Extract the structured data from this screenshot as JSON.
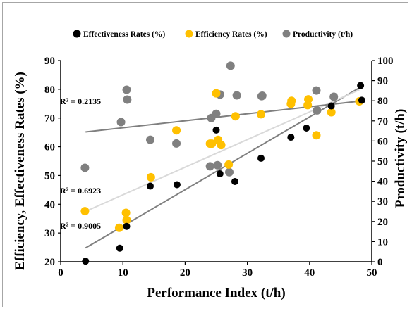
{
  "chart_data": {
    "type": "scatter",
    "xlabel": "Performance Index (t/h)",
    "ylabel_left": "Efficiency, Effectiveness Rates (%)",
    "ylabel_right": "Productivity (t/h)",
    "xlim": [
      0,
      50
    ],
    "ylim_left": [
      20,
      90
    ],
    "ylim_right": [
      0,
      100
    ],
    "x_ticks": [
      "0",
      "10",
      "20",
      "30",
      "40",
      "50"
    ],
    "y_ticks_left": [
      "20",
      "30",
      "40",
      "50",
      "60",
      "70",
      "80",
      "90"
    ],
    "y_ticks_right": [
      "0",
      "10",
      "20",
      "30",
      "40",
      "50",
      "60",
      "70",
      "80",
      "90",
      "100"
    ],
    "grid": false,
    "legend_position": "top",
    "series": [
      {
        "name": "Effectiveness Rates (%)",
        "axis": "left",
        "color": "#000000",
        "x": [
          4.0,
          9.5,
          10.6,
          14.4,
          18.7,
          25.0,
          25.6,
          28.0,
          32.2,
          37.0,
          39.5,
          43.5,
          48.2,
          48.4
        ],
        "y": [
          20.2,
          24.7,
          32.3,
          46.3,
          46.8,
          65.8,
          50.6,
          47.9,
          56.0,
          63.3,
          66.5,
          74.2,
          81.3,
          76.2
        ],
        "trendline_r2": "R² = 0.9005",
        "trendline": [
          [
            4,
            24.8
          ],
          [
            48,
            80.5
          ]
        ]
      },
      {
        "name": "Efficiency Rates (%)",
        "axis": "left",
        "color": "#ffc000",
        "x": [
          3.9,
          9.4,
          10.5,
          10.6,
          14.5,
          18.6,
          24.0,
          24.3,
          25.0,
          25.3,
          25.8,
          27.0,
          28.1,
          32.2,
          37.0,
          37.1,
          39.7,
          39.8,
          41.1,
          43.5,
          48.0
        ],
        "y": [
          37.6,
          31.8,
          37.0,
          34.5,
          49.4,
          65.7,
          61.1,
          61.1,
          78.6,
          62.4,
          60.6,
          53.8,
          70.6,
          71.3,
          74.9,
          76.0,
          74.5,
          76.5,
          64.0,
          72.0,
          75.8
        ],
        "trendline_r2": "R² = 0.6923",
        "trendline": [
          [
            4,
            37.5
          ],
          [
            48,
            79.8
          ]
        ]
      },
      {
        "name": "Productivity (t/h)",
        "axis": "right",
        "color": "#808080",
        "x": [
          3.9,
          9.7,
          10.6,
          10.7,
          14.4,
          18.6,
          24.0,
          24.2,
          25.0,
          25.2,
          25.6,
          27.1,
          27.3,
          28.3,
          32.3,
          32.4,
          41.1,
          41.2,
          43.9
        ],
        "y": [
          46.7,
          69.4,
          85.5,
          80.6,
          60.6,
          58.8,
          47.4,
          71.4,
          73.5,
          48.0,
          83.1,
          44.5,
          97.4,
          82.7,
          82.3,
          82.5,
          85.1,
          75.2,
          82.0
        ],
        "trendline_r2": "R² = 0.2135",
        "trendline": [
          [
            4,
            64.5
          ],
          [
            48,
            79.8
          ]
        ]
      }
    ],
    "annotations": [
      "R² = 0.2135",
      "R² = 0.6923",
      "R² = 0.9005"
    ]
  }
}
